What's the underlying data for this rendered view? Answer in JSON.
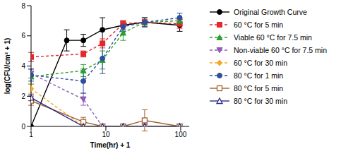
{
  "chart_data": {
    "type": "line",
    "x_label": "Time(hr) + 1",
    "y_label": "log(CFU/cm² + 1)",
    "log": "x",
    "xlim": [
      1,
      130
    ],
    "ylim": [
      0,
      8
    ],
    "xticks": [
      1,
      10,
      100
    ],
    "yticks": [
      0,
      2,
      4,
      6,
      8
    ],
    "legend": "right",
    "series": [
      {
        "name": "Original Growth Curve",
        "color": "#000000",
        "marker": "circle",
        "line_style": "solid",
        "x": [
          1,
          3,
          5,
          9,
          17,
          33,
          97
        ],
        "values": [
          0,
          5.7,
          5.7,
          6.4,
          6.7,
          6.9,
          6.7
        ],
        "errors": [
          0,
          0.7,
          0.4,
          0.8,
          0.3,
          0.3,
          0.4
        ]
      },
      {
        "name": "60 °C for 5 min",
        "color": "#e5262b",
        "marker": "square",
        "line_style": "dashed",
        "x": [
          1,
          5,
          9,
          17,
          33,
          97
        ],
        "values": [
          4.6,
          4.8,
          5.5,
          6.8,
          6.9,
          6.8
        ],
        "errors": [
          0.3,
          0.2,
          0.3,
          0.2,
          0.2,
          0.3
        ]
      },
      {
        "name": "Viable 60 °C for 7.5 min",
        "color": "#2ca02c",
        "marker": "triangle",
        "line_style": "dashed",
        "x": [
          1,
          5,
          9,
          17,
          33,
          97
        ],
        "values": [
          3.3,
          3.7,
          4.4,
          6.2,
          6.9,
          7.0
        ],
        "errors": [
          0.5,
          0.4,
          0.6,
          0.5,
          0.3,
          0.2
        ]
      },
      {
        "name": "Non-viable 60 °C for 7.5 min",
        "color": "#8e5bb5",
        "marker": "triangle-down",
        "line_style": "dashed",
        "x": [
          1,
          5,
          9,
          17,
          33,
          97
        ],
        "values": [
          3.5,
          1.8,
          0,
          0,
          0,
          0
        ],
        "errors": [
          0.3,
          0.4,
          0,
          0,
          0,
          0
        ]
      },
      {
        "name": "60 °C for 30 min",
        "color": "#f5a623",
        "marker": "diamond",
        "line_style": "dashed",
        "x": [
          1,
          5,
          9,
          17,
          33,
          97
        ],
        "values": [
          2.5,
          0,
          0,
          0,
          0,
          0
        ],
        "errors": [
          0.3,
          0,
          0,
          0,
          0,
          0
        ]
      },
      {
        "name": "80 °C for 1 min",
        "color": "#2d4f9e",
        "marker": "circle",
        "line_style": "dashed",
        "x": [
          1,
          5,
          9,
          17,
          33,
          97
        ],
        "values": [
          3.4,
          3.0,
          4.5,
          6.6,
          6.9,
          7.2
        ],
        "errors": [
          0.4,
          0.8,
          1.0,
          0.3,
          0.3,
          0.3
        ]
      },
      {
        "name": "80 °C for 5 min",
        "color": "#a0622d",
        "marker": "square-open",
        "line_style": "solid",
        "x": [
          1,
          5,
          9,
          17,
          33,
          97
        ],
        "values": [
          1.7,
          0.3,
          0,
          0,
          0.4,
          0
        ],
        "errors": [
          0.3,
          0.3,
          0,
          0,
          0.7,
          0
        ]
      },
      {
        "name": "80 °C for 30 min",
        "color": "#2b2b8c",
        "marker": "triangle-open",
        "line_style": "solid",
        "x": [
          1,
          5,
          9,
          17,
          33,
          97
        ],
        "values": [
          1.9,
          0,
          0,
          0,
          0,
          0
        ],
        "errors": [
          0.2,
          0,
          0,
          0,
          0,
          0
        ]
      }
    ]
  }
}
